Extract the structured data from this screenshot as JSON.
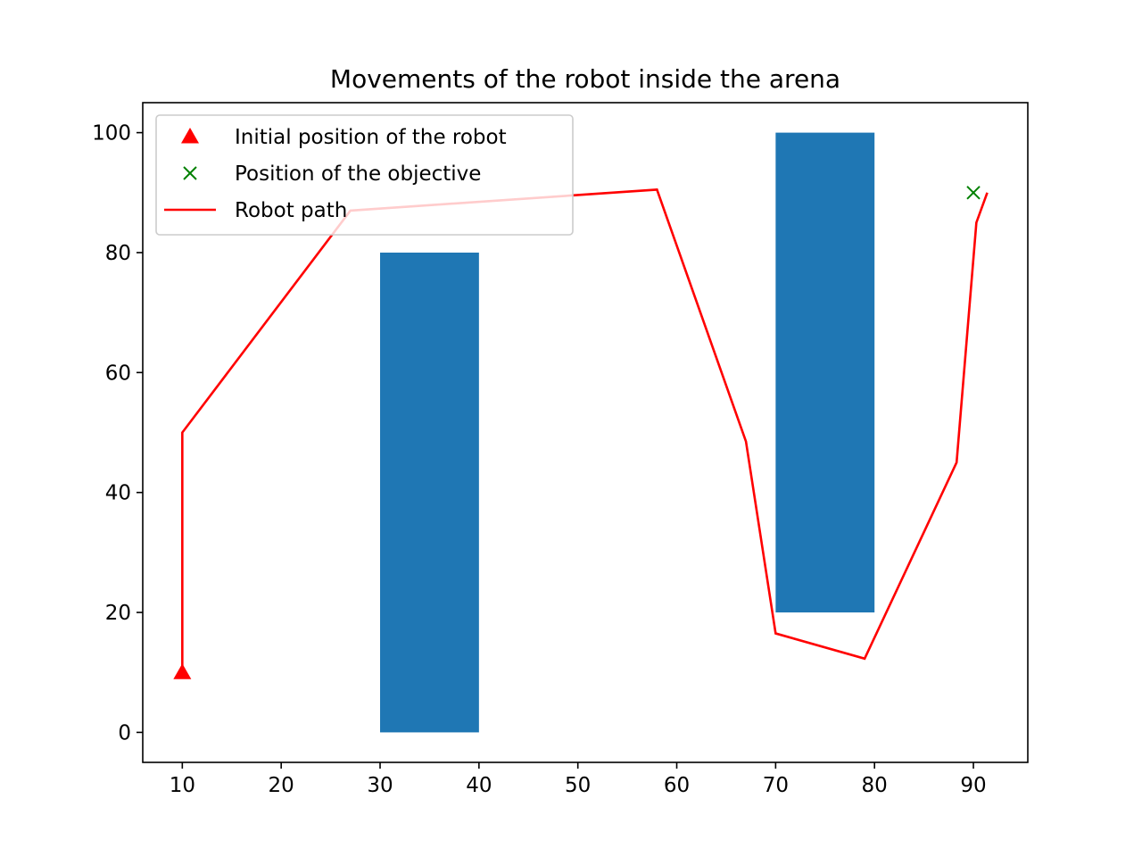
{
  "chart_data": {
    "type": "line",
    "title": "Movements of the robot inside the arena",
    "xlabel": "",
    "ylabel": "",
    "xlim": [
      6,
      95.5
    ],
    "ylim": [
      -5,
      105
    ],
    "xticks": [
      10,
      20,
      30,
      40,
      50,
      60,
      70,
      80,
      90
    ],
    "yticks": [
      0,
      20,
      40,
      60,
      80,
      100
    ],
    "grid": false,
    "legend_position": "top-left",
    "obstacles": [
      {
        "x0": 30,
        "x1": 40,
        "y0": 0,
        "y1": 80,
        "color": "#1f77b4"
      },
      {
        "x0": 70,
        "x1": 80,
        "y0": 20,
        "y1": 100,
        "color": "#1f77b4"
      }
    ],
    "series": [
      {
        "name": "Initial position of the robot",
        "kind": "marker",
        "marker": "triangle",
        "color": "#ff0000",
        "points": [
          [
            10,
            10
          ]
        ]
      },
      {
        "name": "Position of the objective",
        "kind": "marker",
        "marker": "x",
        "color": "#008000",
        "points": [
          [
            90,
            90
          ]
        ]
      },
      {
        "name": "Robot path",
        "kind": "line",
        "color": "#ff0000",
        "points": [
          [
            10,
            10
          ],
          [
            10,
            50
          ],
          [
            27,
            87
          ],
          [
            58,
            90.5
          ],
          [
            67,
            48.5
          ],
          [
            70,
            16.5
          ],
          [
            79,
            12.3
          ],
          [
            88.3,
            45
          ],
          [
            90.3,
            85
          ],
          [
            91.4,
            90
          ]
        ]
      }
    ]
  }
}
